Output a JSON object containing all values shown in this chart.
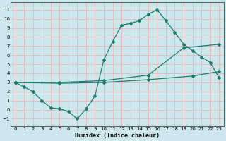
{
  "xlabel": "Humidex (Indice chaleur)",
  "ylabel": "",
  "background_color": "#cde8ec",
  "grid_color": "#e8b4b4",
  "line_color": "#1a7a6e",
  "xlim": [
    -0.5,
    23.5
  ],
  "ylim": [
    -1.8,
    11.8
  ],
  "xticks": [
    0,
    1,
    2,
    3,
    4,
    5,
    6,
    7,
    8,
    9,
    10,
    11,
    12,
    13,
    14,
    15,
    16,
    17,
    18,
    19,
    20,
    21,
    22,
    23
  ],
  "yticks": [
    -1,
    0,
    1,
    2,
    3,
    4,
    5,
    6,
    7,
    8,
    9,
    10,
    11
  ],
  "line1_x": [
    0,
    1,
    2,
    3,
    4,
    5,
    6,
    7,
    8,
    9,
    10,
    11,
    12,
    13,
    14,
    15,
    16,
    17,
    18,
    19,
    20,
    21,
    22,
    23
  ],
  "line1_y": [
    3.0,
    2.5,
    2.0,
    1.0,
    0.2,
    0.1,
    -0.2,
    -1.0,
    0.1,
    1.5,
    5.5,
    7.5,
    9.3,
    9.5,
    9.8,
    10.5,
    11.0,
    9.8,
    8.5,
    7.2,
    6.5,
    5.8,
    5.2,
    3.5
  ],
  "line2_x": [
    0,
    5,
    10,
    15,
    19,
    23
  ],
  "line2_y": [
    3.0,
    3.0,
    3.2,
    3.8,
    6.8,
    7.2
  ],
  "line3_x": [
    0,
    5,
    10,
    15,
    20,
    23
  ],
  "line3_y": [
    3.0,
    2.9,
    3.0,
    3.3,
    3.7,
    4.2
  ]
}
